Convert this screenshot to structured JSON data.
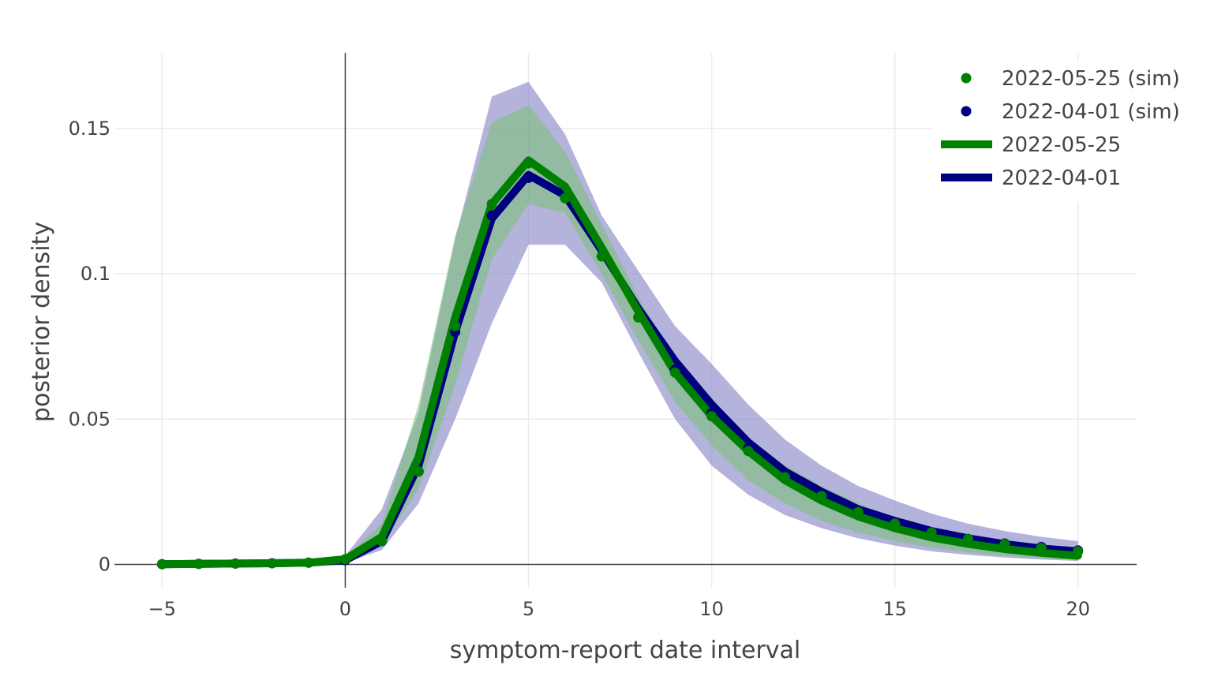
{
  "chart_data": {
    "type": "line",
    "title": "",
    "xlabel": "symptom-report date interval",
    "ylabel": "posterior density",
    "xlim": [
      -6.3,
      21.6
    ],
    "ylim": [
      -0.008,
      0.176
    ],
    "x_ticks": [
      -5,
      0,
      5,
      10,
      15,
      20
    ],
    "x_tick_labels": [
      "−5",
      "0",
      "5",
      "10",
      "15",
      "20"
    ],
    "y_ticks": [
      0,
      0.05,
      0.1,
      0.15
    ],
    "y_tick_labels": [
      "0",
      "0.05",
      "0.1",
      "0.15"
    ],
    "grid": true,
    "legend_position": "top-right",
    "x": [
      -5,
      -4,
      -3,
      -2,
      -1,
      0,
      1,
      2,
      3,
      4,
      5,
      6,
      7,
      8,
      9,
      10,
      11,
      12,
      13,
      14,
      15,
      16,
      17,
      18,
      19,
      20
    ],
    "bands": [
      {
        "series": "2022-04-01",
        "color": "#8080c4",
        "upper": [
          0.0003,
          0.0004,
          0.0005,
          0.0006,
          0.0008,
          0.003,
          0.019,
          0.052,
          0.112,
          0.161,
          0.166,
          0.148,
          0.12,
          0.101,
          0.082,
          0.069,
          0.055,
          0.043,
          0.034,
          0.027,
          0.022,
          0.0175,
          0.014,
          0.0115,
          0.0095,
          0.008
        ],
        "lower": [
          0.0,
          0.0,
          0.0,
          0.0,
          0.0,
          0.0005,
          0.005,
          0.021,
          0.05,
          0.083,
          0.11,
          0.11,
          0.097,
          0.073,
          0.05,
          0.034,
          0.024,
          0.017,
          0.0125,
          0.009,
          0.0065,
          0.0045,
          0.0033,
          0.0024,
          0.0017,
          0.0012
        ]
      },
      {
        "series": "2022-05-25",
        "color": "#7cc07c",
        "upper": [
          0.0003,
          0.0004,
          0.0005,
          0.0006,
          0.0008,
          0.0025,
          0.014,
          0.055,
          0.113,
          0.152,
          0.158,
          0.142,
          0.117,
          0.092,
          0.07,
          0.055,
          0.043,
          0.034,
          0.027,
          0.021,
          0.016,
          0.012,
          0.0095,
          0.0073,
          0.0056,
          0.0043
        ],
        "lower": [
          0.0,
          0.0,
          0.0,
          0.0,
          0.0,
          0.0008,
          0.0065,
          0.026,
          0.062,
          0.105,
          0.124,
          0.121,
          0.1,
          0.077,
          0.056,
          0.041,
          0.029,
          0.021,
          0.015,
          0.011,
          0.008,
          0.0058,
          0.0042,
          0.003,
          0.0021,
          0.0015
        ]
      }
    ],
    "series": [
      {
        "name": "2022-04-01",
        "kind": "line",
        "color": "#00007f",
        "values": [
          0.0001,
          0.0002,
          0.0003,
          0.0004,
          0.0006,
          0.0015,
          0.008,
          0.034,
          0.08,
          0.119,
          0.134,
          0.127,
          0.108,
          0.088,
          0.07,
          0.055,
          0.042,
          0.032,
          0.025,
          0.019,
          0.015,
          0.0115,
          0.009,
          0.007,
          0.0055,
          0.0045
        ]
      },
      {
        "name": "2022-05-25",
        "kind": "line",
        "color": "#008000",
        "values": [
          0.0001,
          0.0002,
          0.0003,
          0.0004,
          0.0006,
          0.0018,
          0.0095,
          0.037,
          0.085,
          0.124,
          0.139,
          0.13,
          0.109,
          0.087,
          0.066,
          0.051,
          0.039,
          0.029,
          0.022,
          0.0165,
          0.0125,
          0.0093,
          0.0071,
          0.0053,
          0.004,
          0.003
        ]
      },
      {
        "name": "2022-04-01 (sim)",
        "kind": "markers",
        "color": "#00007f",
        "values": [
          0.0001,
          0.0002,
          0.0003,
          0.0004,
          0.0006,
          0.0015,
          0.008,
          0.032,
          0.08,
          0.12,
          0.133,
          0.126,
          0.106,
          0.085,
          0.067,
          0.052,
          0.04,
          0.03,
          0.0235,
          0.018,
          0.0142,
          0.011,
          0.0088,
          0.0072,
          0.006,
          0.0048
        ]
      },
      {
        "name": "2022-05-25 (sim)",
        "kind": "markers",
        "color": "#008000",
        "values": [
          0.0001,
          0.0002,
          0.0003,
          0.0004,
          0.0006,
          0.0018,
          0.008,
          0.032,
          0.082,
          0.124,
          0.138,
          0.126,
          0.106,
          0.085,
          0.066,
          0.051,
          0.039,
          0.03,
          0.0235,
          0.018,
          0.014,
          0.011,
          0.0088,
          0.007,
          0.0057,
          0.0045
        ]
      }
    ],
    "legend": [
      {
        "name": "2022-05-25 (sim)",
        "kind": "marker",
        "color": "#008000"
      },
      {
        "name": "2022-04-01 (sim)",
        "kind": "marker",
        "color": "#00007f"
      },
      {
        "name": "2022-05-25",
        "kind": "line",
        "color": "#008000"
      },
      {
        "name": "2022-04-01",
        "kind": "line",
        "color": "#00007f"
      }
    ]
  }
}
